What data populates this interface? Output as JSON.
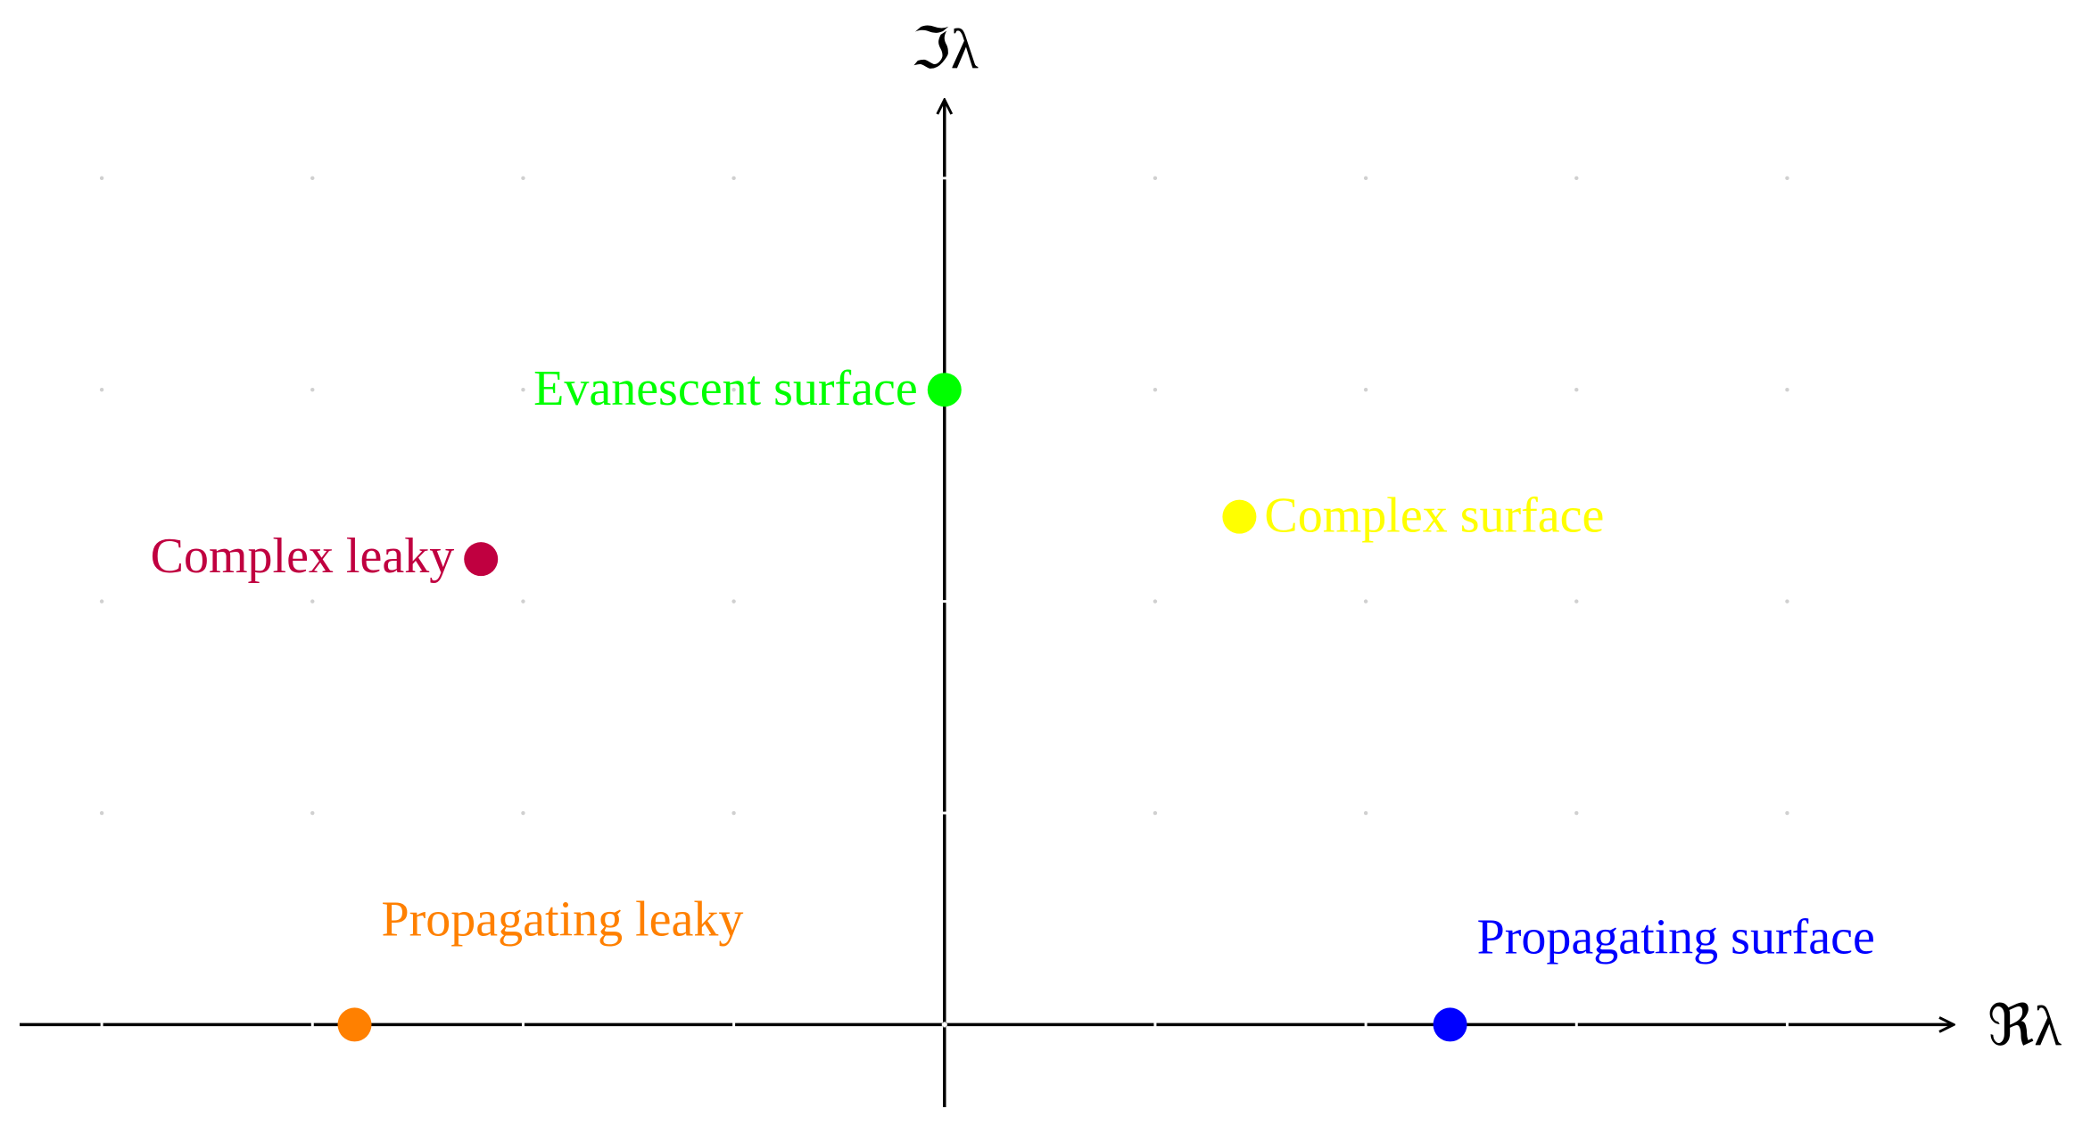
{
  "chart_data": {
    "type": "scatter",
    "x_label": "ℜλ",
    "y_label": "ℑλ",
    "xlim": [
      -4.39,
      4.79
    ],
    "ylim": [
      -0.39,
      4.37
    ],
    "xticks": [
      -4,
      -3,
      -2,
      -1,
      0,
      1,
      2,
      3,
      4
    ],
    "yticks": [
      0,
      1,
      2,
      3,
      4
    ],
    "grid": true,
    "series": [
      {
        "name": "Propagating leaky",
        "color": "#ff8000",
        "x": [
          -2.8
        ],
        "values": [
          0
        ]
      },
      {
        "name": "Complex leaky",
        "color": "#c00040",
        "x": [
          -2.2
        ],
        "values": [
          2.2
        ]
      },
      {
        "name": "Evanescent surface",
        "color": "#00ff00",
        "x": [
          0
        ],
        "values": [
          3.0
        ]
      },
      {
        "name": "Complex surface",
        "color": "#ffff00",
        "x": [
          1.4
        ],
        "values": [
          2.4
        ]
      },
      {
        "name": "Propagating surface",
        "color": "#0000ff",
        "x": [
          2.4
        ],
        "values": [
          0
        ]
      }
    ]
  }
}
